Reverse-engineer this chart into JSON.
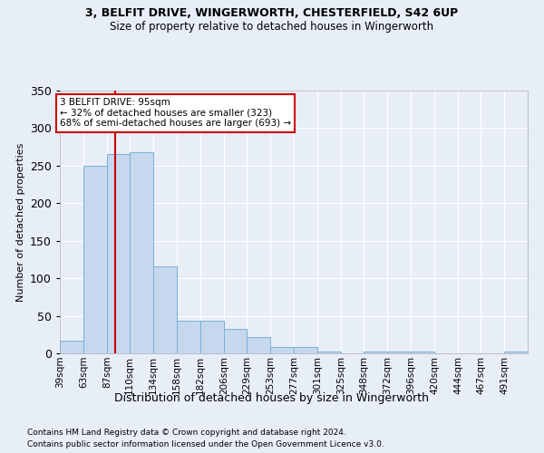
{
  "title1": "3, BELFIT DRIVE, WINGERWORTH, CHESTERFIELD, S42 6UP",
  "title2": "Size of property relative to detached houses in Wingerworth",
  "xlabel": "Distribution of detached houses by size in Wingerworth",
  "ylabel": "Number of detached properties",
  "footnote1": "Contains HM Land Registry data © Crown copyright and database right 2024.",
  "footnote2": "Contains public sector information licensed under the Open Government Licence v3.0.",
  "bar_color": "#c5d8ee",
  "bar_edge_color": "#7bafd4",
  "background_color": "#e8eef8",
  "grid_color": "#ffffff",
  "subject_size": 95,
  "annotation_text": "3 BELFIT DRIVE: 95sqm\n← 32% of detached houses are smaller (323)\n68% of semi-detached houses are larger (693) →",
  "annotation_box_color": "#ffffff",
  "annotation_box_edge_color": "#cc0000",
  "vline_color": "#cc0000",
  "bin_edges": [
    39,
    63,
    87,
    110,
    134,
    158,
    182,
    206,
    229,
    253,
    277,
    301,
    325,
    348,
    372,
    396,
    420,
    444,
    467,
    491,
    515
  ],
  "bar_heights": [
    17,
    250,
    265,
    268,
    116,
    44,
    44,
    33,
    22,
    8,
    8,
    3,
    0,
    3,
    3,
    3,
    0,
    0,
    0,
    3
  ],
  "ylim": [
    0,
    350
  ],
  "yticks": [
    0,
    50,
    100,
    150,
    200,
    250,
    300,
    350
  ],
  "title1_fontsize": 9,
  "title2_fontsize": 8.5
}
